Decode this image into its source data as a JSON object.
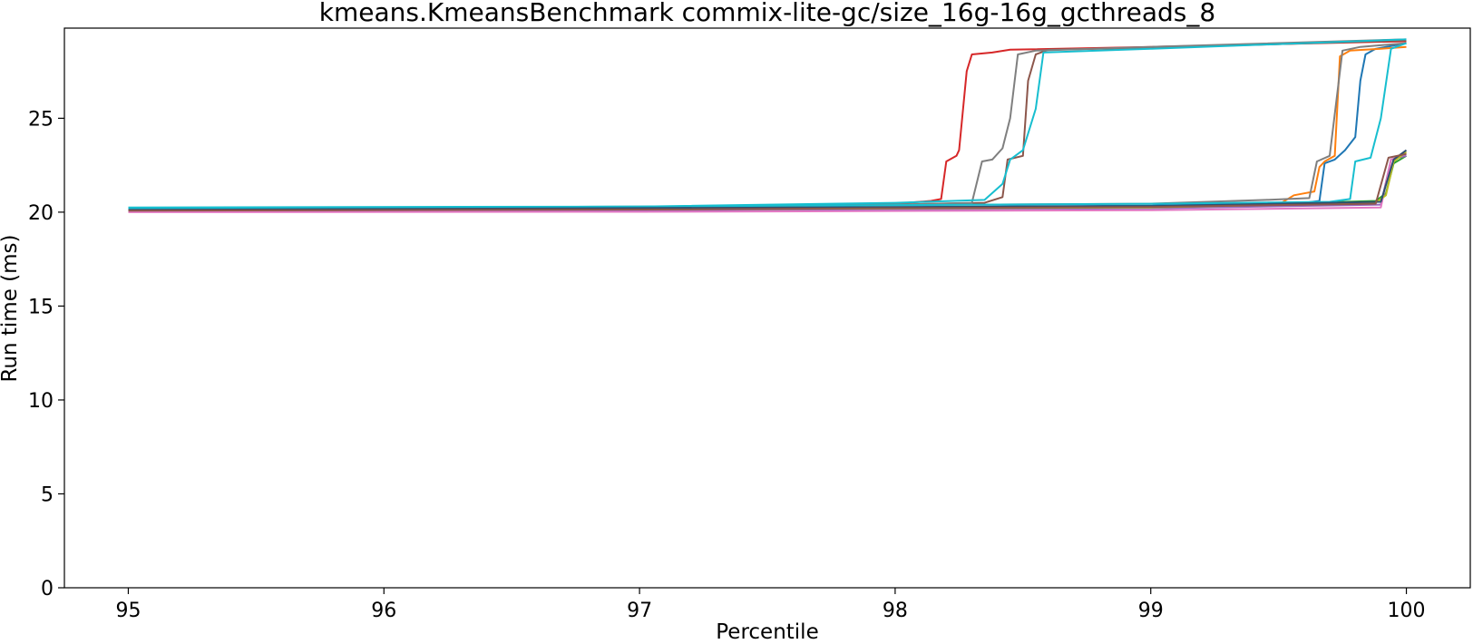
{
  "chart_data": {
    "type": "line",
    "title": "kmeans.KmeansBenchmark commix-lite-gc/size_16g-16g_gcthreads_8",
    "xlabel": "Percentile",
    "ylabel": "Run time (ms)",
    "xlim": [
      94.75,
      100.25
    ],
    "ylim": [
      0,
      29.8
    ],
    "xticks": [
      95,
      96,
      97,
      98,
      99,
      100
    ],
    "yticks": [
      0,
      5,
      10,
      15,
      20,
      25
    ],
    "grid": false,
    "legend": "none",
    "series": [
      {
        "color": "#1f77b4",
        "points": [
          [
            95,
            20.15
          ],
          [
            97,
            20.2
          ],
          [
            99,
            20.35
          ],
          [
            99.6,
            20.5
          ],
          [
            99.66,
            20.6
          ],
          [
            99.68,
            22.6
          ],
          [
            99.72,
            22.8
          ],
          [
            99.76,
            23.3
          ],
          [
            99.8,
            24.0
          ],
          [
            99.82,
            27.0
          ],
          [
            99.84,
            28.4
          ],
          [
            99.88,
            28.7
          ],
          [
            100,
            29.0
          ]
        ]
      },
      {
        "color": "#ff7f0e",
        "points": [
          [
            95,
            20.05
          ],
          [
            97,
            20.1
          ],
          [
            99,
            20.3
          ],
          [
            99.5,
            20.4
          ],
          [
            99.56,
            20.9
          ],
          [
            99.6,
            21.0
          ],
          [
            99.64,
            21.1
          ],
          [
            99.66,
            22.4
          ],
          [
            99.68,
            22.7
          ],
          [
            99.72,
            23.0
          ],
          [
            99.74,
            28.3
          ],
          [
            99.78,
            28.6
          ],
          [
            99.9,
            28.7
          ],
          [
            100,
            28.8
          ]
        ]
      },
      {
        "color": "#2ca02c",
        "points": [
          [
            95,
            20.1
          ],
          [
            97,
            20.15
          ],
          [
            99,
            20.25
          ],
          [
            99.88,
            20.6
          ],
          [
            99.92,
            21.0
          ],
          [
            99.95,
            22.6
          ],
          [
            100,
            23.0
          ]
        ]
      },
      {
        "color": "#d62728",
        "points": [
          [
            95,
            20.1
          ],
          [
            97,
            20.2
          ],
          [
            98,
            20.45
          ],
          [
            98.14,
            20.6
          ],
          [
            98.18,
            20.7
          ],
          [
            98.2,
            22.7
          ],
          [
            98.24,
            23.0
          ],
          [
            98.25,
            23.3
          ],
          [
            98.28,
            27.5
          ],
          [
            98.3,
            28.4
          ],
          [
            98.38,
            28.5
          ],
          [
            98.45,
            28.65
          ],
          [
            99,
            28.8
          ],
          [
            100,
            29.1
          ]
        ]
      },
      {
        "color": "#9467bd",
        "points": [
          [
            95,
            20.05
          ],
          [
            97,
            20.1
          ],
          [
            99,
            20.2
          ],
          [
            99.9,
            20.4
          ],
          [
            99.94,
            22.8
          ],
          [
            100,
            23.0
          ]
        ]
      },
      {
        "color": "#8c564b",
        "points": [
          [
            95,
            20.15
          ],
          [
            97,
            20.25
          ],
          [
            98,
            20.4
          ],
          [
            98.35,
            20.5
          ],
          [
            98.42,
            20.8
          ],
          [
            98.44,
            22.8
          ],
          [
            98.5,
            23.0
          ],
          [
            98.52,
            27.0
          ],
          [
            98.55,
            28.4
          ],
          [
            98.6,
            28.65
          ],
          [
            99,
            28.75
          ],
          [
            100,
            29.15
          ]
        ]
      },
      {
        "color": "#e377c2",
        "points": [
          [
            95,
            20.0
          ],
          [
            97,
            20.02
          ],
          [
            99,
            20.1
          ],
          [
            99.9,
            20.25
          ],
          [
            99.94,
            22.8
          ],
          [
            100,
            23.1
          ]
        ]
      },
      {
        "color": "#7f7f7f",
        "points": [
          [
            95,
            20.15
          ],
          [
            97,
            20.25
          ],
          [
            98,
            20.4
          ],
          [
            98.3,
            20.5
          ],
          [
            98.34,
            22.7
          ],
          [
            98.38,
            22.8
          ],
          [
            98.42,
            23.4
          ],
          [
            98.45,
            25.0
          ],
          [
            98.48,
            28.4
          ],
          [
            98.55,
            28.6
          ],
          [
            99,
            28.8
          ],
          [
            100,
            29.2
          ]
        ]
      },
      {
        "color": "#7f7f7f",
        "points": [
          [
            95,
            20.2
          ],
          [
            97,
            20.3
          ],
          [
            99,
            20.45
          ],
          [
            99.45,
            20.65
          ],
          [
            99.62,
            20.75
          ],
          [
            99.65,
            22.7
          ],
          [
            99.7,
            23.0
          ],
          [
            99.75,
            28.6
          ],
          [
            99.82,
            28.8
          ],
          [
            100,
            29.0
          ]
        ]
      },
      {
        "color": "#bcbd22",
        "points": [
          [
            95,
            20.1
          ],
          [
            97,
            20.15
          ],
          [
            99,
            20.25
          ],
          [
            99.88,
            20.5
          ],
          [
            99.92,
            20.9
          ],
          [
            99.95,
            22.7
          ],
          [
            100,
            23.2
          ]
        ]
      },
      {
        "color": "#17becf",
        "points": [
          [
            95,
            20.25
          ],
          [
            97,
            20.3
          ],
          [
            98,
            20.5
          ],
          [
            98.35,
            20.65
          ],
          [
            98.42,
            21.5
          ],
          [
            98.45,
            22.8
          ],
          [
            98.5,
            23.3
          ],
          [
            98.55,
            25.5
          ],
          [
            98.58,
            28.5
          ],
          [
            99,
            28.7
          ],
          [
            100,
            29.2
          ]
        ]
      },
      {
        "color": "#17becf",
        "points": [
          [
            95,
            20.2
          ],
          [
            97,
            20.3
          ],
          [
            99,
            20.45
          ],
          [
            99.7,
            20.55
          ],
          [
            99.78,
            20.7
          ],
          [
            99.8,
            22.7
          ],
          [
            99.86,
            22.9
          ],
          [
            99.9,
            25.0
          ],
          [
            99.94,
            28.7
          ],
          [
            100,
            29.0
          ]
        ]
      },
      {
        "color": "#2f4f6f",
        "points": [
          [
            95,
            20.12
          ],
          [
            97,
            20.22
          ],
          [
            99,
            20.32
          ],
          [
            99.9,
            20.55
          ],
          [
            99.95,
            22.8
          ],
          [
            100,
            23.3
          ]
        ]
      },
      {
        "color": "#8c564b",
        "points": [
          [
            95,
            20.08
          ],
          [
            97,
            20.14
          ],
          [
            99,
            20.28
          ],
          [
            99.88,
            20.45
          ],
          [
            99.93,
            22.9
          ],
          [
            100,
            23.1
          ]
        ]
      }
    ]
  }
}
